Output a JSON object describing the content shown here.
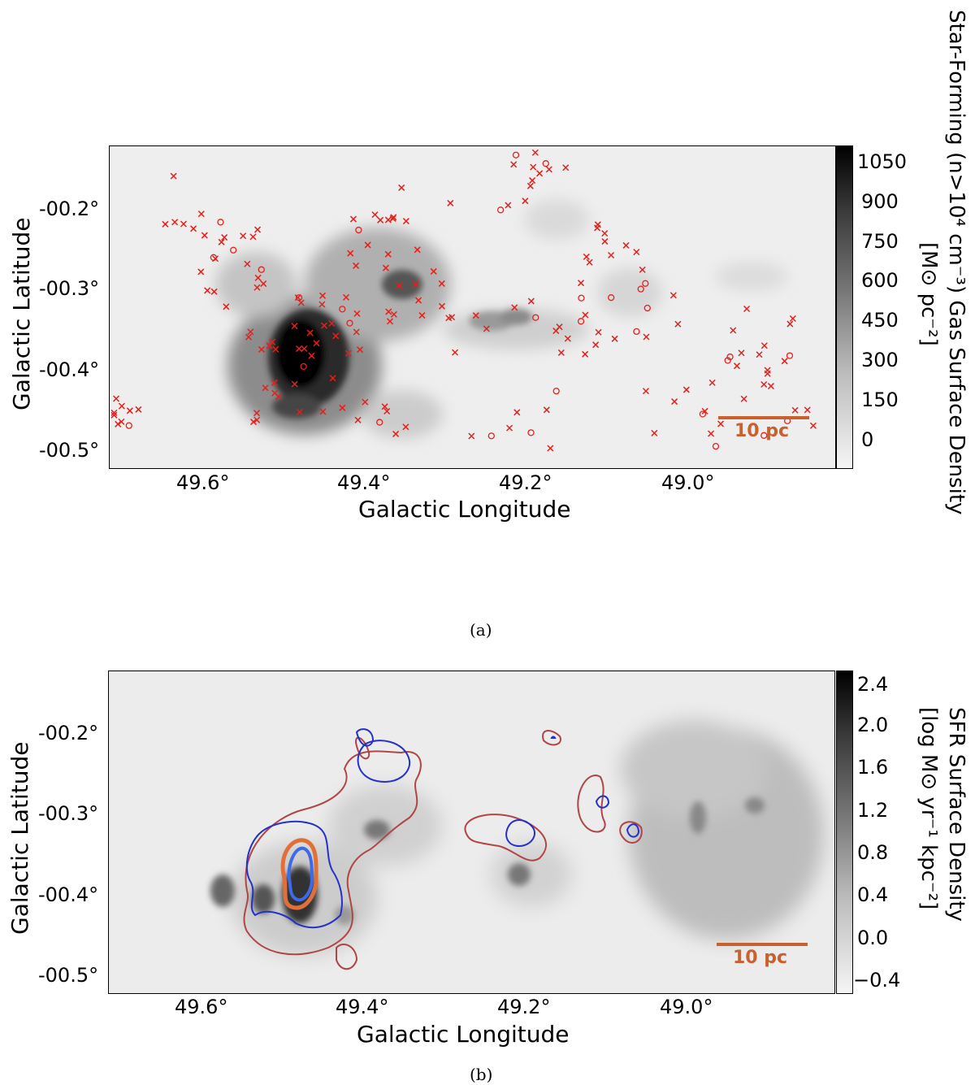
{
  "panel_a": {
    "caption": "(a)",
    "xlabel": "Galactic Longitude",
    "ylabel": "Galactic Latitude",
    "x_ticks": [
      "49.6°",
      "49.4°",
      "49.2°",
      "49.0°"
    ],
    "y_ticks": [
      "-00.2°",
      "-00.3°",
      "-00.4°",
      "-00.5°"
    ],
    "colorbar_label_line1": "Star-Forming (n>10⁴ cm⁻³) Gas Surface Density",
    "colorbar_label_line2": "[M⊙ pc⁻²]",
    "colorbar_ticks": [
      "1050",
      "900",
      "750",
      "600",
      "450",
      "300",
      "150",
      "0"
    ],
    "scalebar_label": "10 pc",
    "marker_color": "#e3201b"
  },
  "panel_b": {
    "caption": "(b)",
    "xlabel": "Galactic Longitude",
    "ylabel": "Galactic Latitude",
    "x_ticks": [
      "49.6°",
      "49.4°",
      "49.2°",
      "49.0°"
    ],
    "y_ticks": [
      "-00.2°",
      "-00.3°",
      "-00.4°",
      "-00.5°"
    ],
    "colorbar_label_line1": "SFR Surface Density",
    "colorbar_label_line2": "[log M⊙ yr⁻¹ kpc⁻²]",
    "colorbar_ticks": [
      "2.4",
      "2.0",
      "1.6",
      "1.2",
      "0.8",
      "0.4",
      "0.0",
      "−0.4"
    ],
    "scalebar_label": "10 pc",
    "contour_colors": [
      "#b04545",
      "#2331c8",
      "#e0703a",
      "#3d6ae8"
    ]
  }
}
